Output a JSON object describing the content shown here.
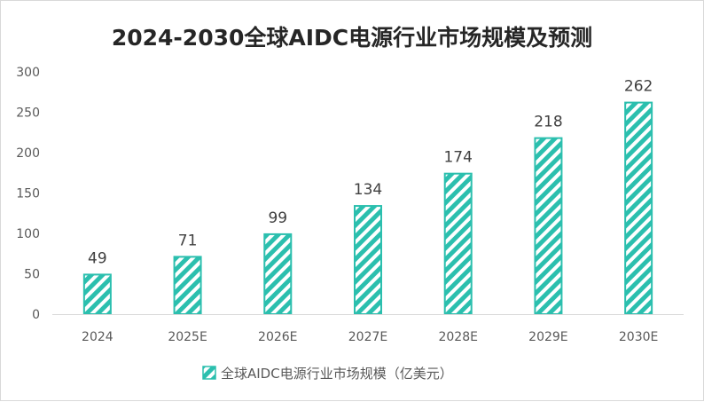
{
  "chart_data": {
    "type": "bar",
    "title": "2024-2030全球AIDC电源行业市场规模及预测",
    "categories": [
      "2024",
      "2025E",
      "2026E",
      "2027E",
      "2028E",
      "2029E",
      "2030E"
    ],
    "series": [
      {
        "name": "全球AIDC电源行业市场规模（亿美元）",
        "values": [
          49,
          71,
          99,
          134,
          174,
          218,
          262
        ],
        "color": "#2bbfae",
        "pattern": "diagonal-stripes"
      }
    ],
    "ylim": [
      0,
      300
    ],
    "yticks": [
      0,
      50,
      100,
      150,
      200,
      250,
      300
    ],
    "data_labels": true,
    "grid": false,
    "legend_position": "bottom"
  }
}
